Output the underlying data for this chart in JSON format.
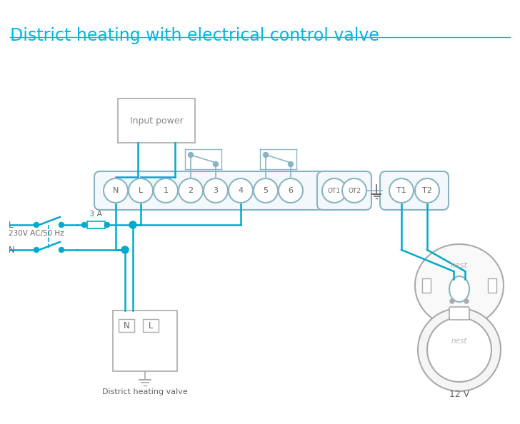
{
  "title": "District heating with electrical control valve",
  "title_color": "#00b8e6",
  "title_fontsize": 17,
  "bg_color": "#ffffff",
  "wire_color": "#00aacc",
  "terminal_border": "#8ab4c4",
  "terminal_face": "#ffffff",
  "block_face": "#f2f8fb",
  "gray_border": "#aaaaaa",
  "label_color": "#666666",
  "input_label": "Input power",
  "valve_label": "District heating valve",
  "nest_label": "12 V",
  "ac_label": "230V AC/50 Hz",
  "L_label": "L",
  "N_label": "N",
  "switch_label": "3 A"
}
